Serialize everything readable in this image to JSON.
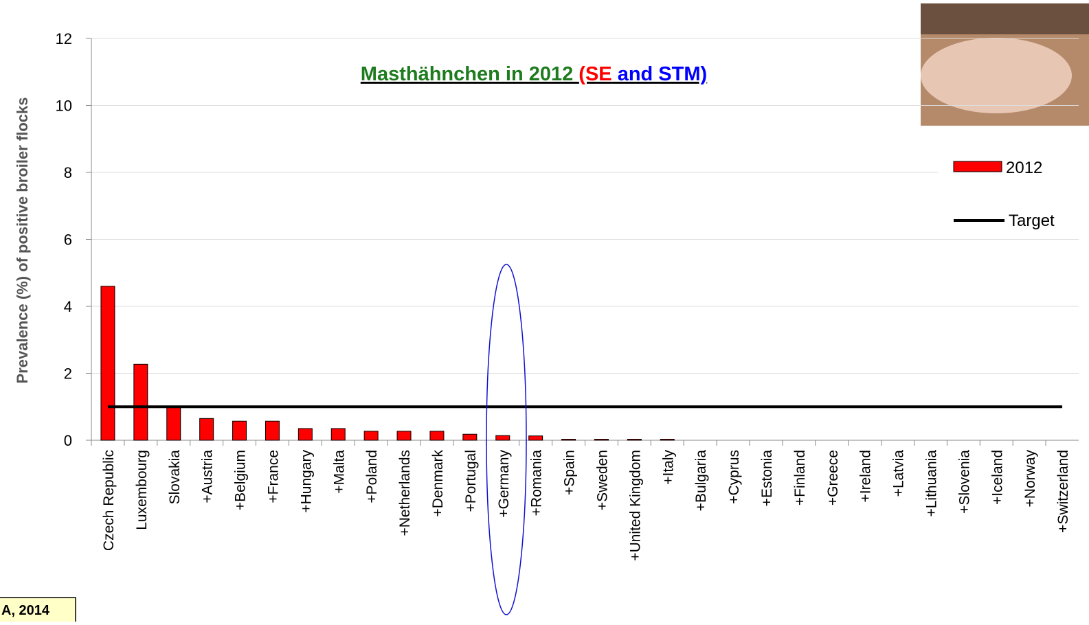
{
  "chart_data": {
    "type": "bar",
    "title_parts": [
      {
        "text": "Masthähnchen in 2012 ",
        "color": "#1e7b1e"
      },
      {
        "text": "(SE",
        "color": "#ff0000"
      },
      {
        "text": " and STM)",
        "color": "#0000ff"
      }
    ],
    "y_label": "Prevalence (%) of positive broiler flocks",
    "categories": [
      "Czech Republic",
      "Luxembourg",
      "Slovakia",
      "+Austria",
      "+Belgium",
      "+France",
      "+Hungary",
      "+Malta",
      "+Poland",
      "+Netherlands",
      "+Denmark",
      "+Portugal",
      "+Germany",
      "+Romania",
      "+Spain",
      "+Sweden",
      "+United Kingdom",
      "+Italy",
      "+Bulgaria",
      "+Cyprus",
      "+Estonia",
      "+Finland",
      "+Greece",
      "+Ireland",
      "+Latvia",
      "+Lithuania",
      "+Slovenia",
      "+Iceland",
      "+Norway",
      "+Switzerland"
    ],
    "series": [
      {
        "name": "2012",
        "color": "#ff0000",
        "values": [
          4.6,
          2.27,
          1.0,
          0.65,
          0.57,
          0.57,
          0.35,
          0.35,
          0.27,
          0.27,
          0.27,
          0.18,
          0.14,
          0.13,
          0.03,
          0.03,
          0.03,
          0.03,
          0,
          0,
          0,
          0,
          0,
          0,
          0,
          0,
          0,
          0,
          0,
          0
        ]
      }
    ],
    "target": {
      "name": "Target",
      "value": 1,
      "color": "#000000"
    },
    "ylim": [
      0,
      12
    ],
    "yticks": [
      0,
      2,
      4,
      6,
      8,
      10,
      12
    ],
    "grid": true,
    "source": "A, 2014"
  }
}
